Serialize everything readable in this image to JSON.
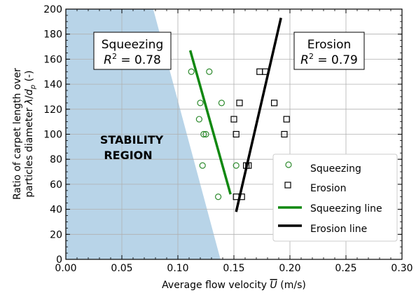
{
  "chart_data": {
    "type": "scatter",
    "xlabel": "Average flow velocity U (m/s)",
    "xlabel_parts": {
      "pre": "Average flow velocity ",
      "var": "U",
      "post": " (m/s)"
    },
    "ylabel": "Ratio of carpet length over particles diameter λ/dp (-)",
    "ylabel_line1": "Ratio of carpet length over",
    "ylabel_line2_parts": {
      "pre": "particles diameter ",
      "lambda": "λ",
      "slash": "/",
      "d": "d",
      "sub": "p",
      "post": " (-)"
    },
    "xlim": [
      0,
      0.3
    ],
    "ylim": [
      0,
      200
    ],
    "xticks": [
      0.0,
      0.05,
      0.1,
      0.15,
      0.2,
      0.25,
      0.3
    ],
    "xtick_labels": [
      "0.00",
      "0.05",
      "0.10",
      "0.15",
      "0.20",
      "0.25",
      "0.30"
    ],
    "yticks": [
      0,
      20,
      40,
      60,
      80,
      100,
      120,
      140,
      160,
      180,
      200
    ],
    "ytick_labels": [
      "0",
      "20",
      "40",
      "60",
      "80",
      "100",
      "120",
      "140",
      "160",
      "180",
      "200"
    ],
    "grid": true,
    "legend_position": "lower-right",
    "stability_region": {
      "label_line1": "STABILITY",
      "label_line2": "REGION",
      "color": "#b8d4e8",
      "boundary": [
        [
          0.078,
          200
        ],
        [
          0.138,
          0
        ]
      ]
    },
    "series": [
      {
        "name": "Squeezing",
        "marker": "circle",
        "color": "#2e8b2e",
        "points": [
          [
            0.112,
            150
          ],
          [
            0.128,
            150
          ],
          [
            0.12,
            125
          ],
          [
            0.139,
            125
          ],
          [
            0.119,
            112
          ],
          [
            0.123,
            100
          ],
          [
            0.125,
            100
          ],
          [
            0.122,
            75
          ],
          [
            0.152,
            75
          ],
          [
            0.136,
            50
          ]
        ]
      },
      {
        "name": "Erosion",
        "marker": "square",
        "color": "#000000",
        "points": [
          [
            0.173,
            150
          ],
          [
            0.178,
            150
          ],
          [
            0.155,
            125
          ],
          [
            0.186,
            125
          ],
          [
            0.15,
            112
          ],
          [
            0.197,
            112
          ],
          [
            0.152,
            100
          ],
          [
            0.195,
            100
          ],
          [
            0.161,
            75
          ],
          [
            0.163,
            75
          ],
          [
            0.152,
            50
          ],
          [
            0.157,
            50
          ]
        ]
      }
    ],
    "lines": [
      {
        "name": "Squeezing line",
        "color": "#118811",
        "from": [
          0.111,
          167
        ],
        "to": [
          0.147,
          52
        ]
      },
      {
        "name": "Erosion line",
        "color": "#000000",
        "from": [
          0.152,
          38
        ],
        "to": [
          0.192,
          193
        ]
      }
    ],
    "annotations": [
      {
        "label": "Squeezing",
        "r2_value": "0.78"
      },
      {
        "label": "Erosion",
        "r2_value": "0.79"
      }
    ]
  }
}
